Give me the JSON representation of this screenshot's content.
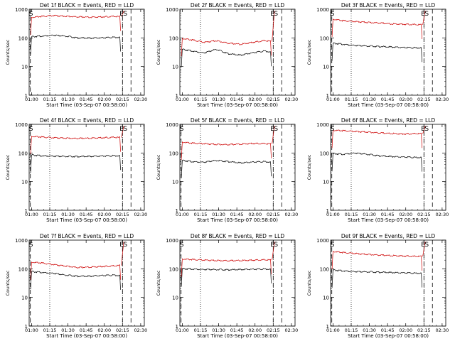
{
  "panels": [
    {
      "title": "Det 1f BLACK = Events, RED = LLD"
    },
    {
      "title": "Det 2f BLACK = Events, RED = LLD"
    },
    {
      "title": "Det 3f BLACK = Events, RED = LLD"
    },
    {
      "title": "Det 4f BLACK = Events, RED = LLD"
    },
    {
      "title": "Det 5f BLACK = Events, RED = LLD"
    },
    {
      "title": "Det 6f BLACK = Events, RED = LLD"
    },
    {
      "title": "Det 7f BLACK = Events, RED = LLD"
    },
    {
      "title": "Det 8f BLACK = Events, RED = LLD"
    },
    {
      "title": "Det 9f BLACK = Events, RED = LLD"
    }
  ],
  "colors": {
    "events": "#000000",
    "lld": "#cc0000"
  },
  "chart_data": [
    {
      "type": "line",
      "title": "Det 1f BLACK = Events, RED = LLD",
      "ylabel": "Counts/sec",
      "xlabel": "Start Time (03-Sep-07 00:58:00)",
      "yscale": "log",
      "ylim": [
        1,
        1000
      ],
      "xlim_minutes": [
        0,
        95
      ],
      "x_ticks": [
        "01:00",
        "01:15",
        "01:30",
        "01:45",
        "02:00",
        "02:15",
        "02:30"
      ],
      "y_ticks": [
        "1",
        "10",
        "100",
        "1000"
      ],
      "markers": [
        "S",
        "E",
        "S"
      ],
      "series": [
        {
          "x": [
            2,
            10,
            20,
            30,
            40,
            50,
            60,
            70,
            75
          ],
          "y": [
            520,
            560,
            600,
            570,
            540,
            530,
            540,
            560,
            550
          ]
        },
        {
          "x": [
            2,
            10,
            20,
            30,
            40,
            50,
            60,
            70,
            75
          ],
          "y": [
            110,
            115,
            125,
            115,
            100,
            98,
            100,
            105,
            105
          ]
        }
      ]
    },
    {
      "type": "line",
      "title": "Det 2f BLACK = Events, RED = LLD",
      "ylabel": "Counts/sec",
      "xlabel": "Start Time (03-Sep-07 00:58:00)",
      "yscale": "log",
      "ylim": [
        1,
        1000
      ],
      "xlim_minutes": [
        0,
        95
      ],
      "x_ticks": [
        "01:00",
        "01:15",
        "01:30",
        "01:45",
        "02:00",
        "02:15",
        "02:30"
      ],
      "y_ticks": [
        "1",
        "10",
        "100",
        "1000"
      ],
      "markers": [
        "E",
        "S"
      ],
      "series": [
        {
          "x": [
            2,
            10,
            20,
            30,
            40,
            50,
            60,
            70,
            75
          ],
          "y": [
            95,
            85,
            70,
            80,
            65,
            60,
            70,
            80,
            75
          ]
        },
        {
          "x": [
            2,
            10,
            20,
            30,
            40,
            50,
            60,
            70,
            75
          ],
          "y": [
            40,
            35,
            30,
            40,
            28,
            25,
            30,
            35,
            32
          ]
        }
      ]
    },
    {
      "type": "line",
      "title": "Det 3f BLACK = Events, RED = LLD",
      "ylabel": "Counts/sec",
      "xlabel": "Start Time (03-Sep-07 00:58:00)",
      "yscale": "log",
      "ylim": [
        1,
        1000
      ],
      "xlim_minutes": [
        0,
        95
      ],
      "x_ticks": [
        "01:00",
        "01:15",
        "01:30",
        "01:45",
        "02:00",
        "02:15",
        "02:30"
      ],
      "y_ticks": [
        "1",
        "10",
        "100",
        "1000"
      ],
      "markers": [
        "S",
        "E",
        "S"
      ],
      "series": [
        {
          "x": [
            2,
            10,
            20,
            30,
            40,
            50,
            60,
            70,
            75
          ],
          "y": [
            450,
            400,
            370,
            350,
            330,
            310,
            300,
            290,
            285
          ]
        },
        {
          "x": [
            2,
            10,
            20,
            30,
            40,
            50,
            60,
            70,
            75
          ],
          "y": [
            65,
            60,
            55,
            52,
            50,
            48,
            46,
            45,
            45
          ]
        }
      ]
    },
    {
      "type": "line",
      "title": "Det 4f BLACK = Events, RED = LLD",
      "ylabel": "Counts/sec",
      "xlabel": "Start Time (03-Sep-07 00:58:00)",
      "yscale": "log",
      "ylim": [
        1,
        1000
      ],
      "xlim_minutes": [
        0,
        95
      ],
      "x_ticks": [
        "01:00",
        "01:15",
        "01:30",
        "01:45",
        "02:00",
        "02:15",
        "02:30"
      ],
      "y_ticks": [
        "1",
        "10",
        "100",
        "1000"
      ],
      "markers": [
        "S",
        "E",
        "S"
      ],
      "series": [
        {
          "x": [
            2,
            10,
            20,
            30,
            40,
            50,
            60,
            70,
            75
          ],
          "y": [
            380,
            360,
            340,
            330,
            320,
            330,
            340,
            350,
            345
          ]
        },
        {
          "x": [
            2,
            10,
            20,
            30,
            40,
            50,
            60,
            70,
            75
          ],
          "y": [
            85,
            80,
            78,
            76,
            75,
            76,
            78,
            80,
            80
          ]
        }
      ]
    },
    {
      "type": "line",
      "title": "Det 5f BLACK = Events, RED = LLD",
      "ylabel": "Counts/sec",
      "xlabel": "Start Time (03-Sep-07 00:58:00)",
      "yscale": "log",
      "ylim": [
        1,
        1000
      ],
      "xlim_minutes": [
        0,
        95
      ],
      "x_ticks": [
        "01:00",
        "01:15",
        "01:30",
        "01:45",
        "02:00",
        "02:15",
        "02:30"
      ],
      "y_ticks": [
        "1",
        "10",
        "100",
        "1000"
      ],
      "markers": [
        "S",
        "E",
        "S"
      ],
      "series": [
        {
          "x": [
            2,
            10,
            20,
            30,
            40,
            50,
            60,
            70,
            75
          ],
          "y": [
            240,
            220,
            210,
            200,
            195,
            205,
            215,
            210,
            205
          ]
        },
        {
          "x": [
            2,
            10,
            20,
            30,
            40,
            50,
            60,
            70,
            75
          ],
          "y": [
            55,
            50,
            48,
            55,
            50,
            45,
            48,
            50,
            48
          ]
        }
      ]
    },
    {
      "type": "line",
      "title": "Det 6f BLACK = Events, RED = LLD",
      "ylabel": "Counts/sec",
      "xlabel": "Start Time (03-Sep-07 00:58:00)",
      "yscale": "log",
      "ylim": [
        1,
        1000
      ],
      "xlim_minutes": [
        0,
        95
      ],
      "x_ticks": [
        "01:00",
        "01:15",
        "01:30",
        "01:45",
        "02:00",
        "02:15",
        "02:30"
      ],
      "y_ticks": [
        "1",
        "10",
        "100",
        "1000"
      ],
      "markers": [
        "S",
        "E",
        "S"
      ],
      "series": [
        {
          "x": [
            2,
            10,
            20,
            30,
            40,
            50,
            60,
            70,
            75
          ],
          "y": [
            620,
            600,
            560,
            540,
            500,
            480,
            460,
            470,
            470
          ]
        },
        {
          "x": [
            2,
            10,
            20,
            30,
            40,
            50,
            60,
            70,
            75
          ],
          "y": [
            95,
            90,
            100,
            90,
            80,
            75,
            72,
            70,
            70
          ]
        }
      ]
    },
    {
      "type": "line",
      "title": "Det 7f BLACK = Events, RED = LLD",
      "ylabel": "Counts/sec",
      "xlabel": "Start Time (03-Sep-07 00:58:00)",
      "yscale": "log",
      "ylim": [
        1,
        1000
      ],
      "xlim_minutes": [
        0,
        95
      ],
      "x_ticks": [
        "01:00",
        "01:15",
        "01:30",
        "01:45",
        "02:00",
        "02:15",
        "02:30"
      ],
      "y_ticks": [
        "1",
        "10",
        "100",
        "1000"
      ],
      "markers": [
        "S",
        "E",
        "S"
      ],
      "series": [
        {
          "x": [
            2,
            10,
            20,
            30,
            40,
            50,
            60,
            70,
            75
          ],
          "y": [
            170,
            160,
            140,
            125,
            110,
            115,
            120,
            125,
            130
          ]
        },
        {
          "x": [
            2,
            10,
            20,
            30,
            40,
            50,
            60,
            70,
            75
          ],
          "y": [
            80,
            75,
            70,
            60,
            55,
            55,
            58,
            60,
            58
          ]
        }
      ]
    },
    {
      "type": "line",
      "title": "Det 8f BLACK = Events, RED = LLD",
      "ylabel": "Counts/sec",
      "xlabel": "Start Time (03-Sep-07 00:58:00)",
      "yscale": "log",
      "ylim": [
        1,
        1000
      ],
      "xlim_minutes": [
        0,
        95
      ],
      "x_ticks": [
        "01:00",
        "01:15",
        "01:30",
        "01:45",
        "02:00",
        "02:15",
        "02:30"
      ],
      "y_ticks": [
        "1",
        "10",
        "100",
        "1000"
      ],
      "markers": [
        "S",
        "E",
        "S"
      ],
      "series": [
        {
          "x": [
            2,
            10,
            20,
            30,
            40,
            50,
            60,
            70,
            75
          ],
          "y": [
            220,
            210,
            200,
            195,
            190,
            195,
            200,
            205,
            200
          ]
        },
        {
          "x": [
            2,
            10,
            20,
            30,
            40,
            50,
            60,
            70,
            75
          ],
          "y": [
            100,
            98,
            95,
            94,
            92,
            94,
            96,
            98,
            97
          ]
        }
      ]
    },
    {
      "type": "line",
      "title": "Det 9f BLACK = Events, RED = LLD",
      "ylabel": "Counts/sec",
      "xlabel": "Start Time (03-Sep-07 00:58:00)",
      "yscale": "log",
      "ylim": [
        1,
        1000
      ],
      "xlim_minutes": [
        0,
        95
      ],
      "x_ticks": [
        "01:00",
        "01:15",
        "01:30",
        "01:45",
        "02:00",
        "02:15",
        "02:30"
      ],
      "y_ticks": [
        "1",
        "10",
        "100",
        "1000"
      ],
      "markers": [
        "S",
        "E",
        "S"
      ],
      "series": [
        {
          "x": [
            2,
            10,
            20,
            30,
            40,
            50,
            60,
            70,
            75
          ],
          "y": [
            400,
            370,
            340,
            320,
            300,
            290,
            280,
            270,
            270
          ]
        },
        {
          "x": [
            2,
            10,
            20,
            30,
            40,
            50,
            60,
            70,
            75
          ],
          "y": [
            90,
            85,
            80,
            78,
            76,
            74,
            72,
            70,
            70
          ]
        }
      ]
    }
  ]
}
